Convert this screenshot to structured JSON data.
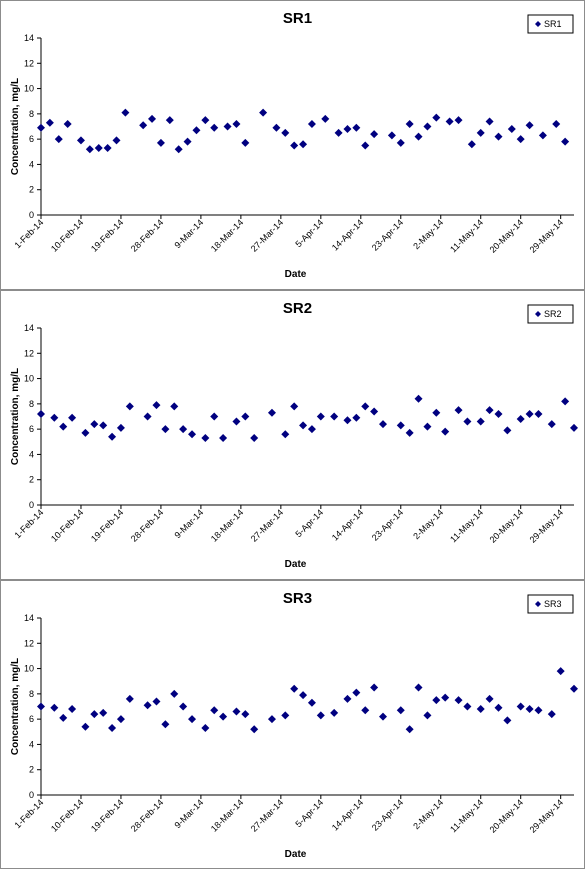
{
  "chart_data": [
    {
      "type": "scatter",
      "title": "SR1",
      "xlabel": "Date",
      "ylabel": "Concentration, mg/L",
      "ylim": [
        0,
        14
      ],
      "yticks": [
        "0",
        "2",
        "4",
        "6",
        "8",
        "10",
        "12",
        "14"
      ],
      "xlim": [
        "2014-02-01",
        "2014-06-01"
      ],
      "xticks": [
        "1-Feb-14",
        "10-Feb-14",
        "19-Feb-14",
        "28-Feb-14",
        "9-Mar-14",
        "18-Mar-14",
        "27-Mar-14",
        "5-Apr-14",
        "14-Apr-14",
        "23-Apr-14",
        "2-May-14",
        "11-May-14",
        "20-May-14",
        "29-May-14"
      ],
      "grid": false,
      "legend_position": "top-right",
      "marker_color": "#000080",
      "series": [
        {
          "name": "SR1",
          "points": [
            [
              "2014-02-01",
              6.9
            ],
            [
              "2014-02-03",
              7.3
            ],
            [
              "2014-02-05",
              6.0
            ],
            [
              "2014-02-07",
              7.2
            ],
            [
              "2014-02-10",
              5.9
            ],
            [
              "2014-02-12",
              5.2
            ],
            [
              "2014-02-14",
              5.3
            ],
            [
              "2014-02-16",
              5.3
            ],
            [
              "2014-02-18",
              5.9
            ],
            [
              "2014-02-20",
              8.1
            ],
            [
              "2014-02-24",
              7.1
            ],
            [
              "2014-02-26",
              7.6
            ],
            [
              "2014-02-28",
              5.7
            ],
            [
              "2014-03-02",
              7.5
            ],
            [
              "2014-03-04",
              5.2
            ],
            [
              "2014-03-06",
              5.8
            ],
            [
              "2014-03-08",
              6.7
            ],
            [
              "2014-03-10",
              7.5
            ],
            [
              "2014-03-12",
              6.9
            ],
            [
              "2014-03-15",
              7.0
            ],
            [
              "2014-03-17",
              7.2
            ],
            [
              "2014-03-19",
              5.7
            ],
            [
              "2014-03-23",
              8.1
            ],
            [
              "2014-03-26",
              6.9
            ],
            [
              "2014-03-28",
              6.5
            ],
            [
              "2014-03-30",
              5.5
            ],
            [
              "2014-04-01",
              5.6
            ],
            [
              "2014-04-03",
              7.2
            ],
            [
              "2014-04-06",
              7.6
            ],
            [
              "2014-04-09",
              6.5
            ],
            [
              "2014-04-11",
              6.8
            ],
            [
              "2014-04-13",
              6.9
            ],
            [
              "2014-04-15",
              5.5
            ],
            [
              "2014-04-17",
              6.4
            ],
            [
              "2014-04-21",
              6.3
            ],
            [
              "2014-04-23",
              5.7
            ],
            [
              "2014-04-25",
              7.2
            ],
            [
              "2014-04-27",
              6.2
            ],
            [
              "2014-04-29",
              7.0
            ],
            [
              "2014-05-01",
              7.7
            ],
            [
              "2014-05-04",
              7.4
            ],
            [
              "2014-05-06",
              7.5
            ],
            [
              "2014-05-09",
              5.6
            ],
            [
              "2014-05-11",
              6.5
            ],
            [
              "2014-05-13",
              7.4
            ],
            [
              "2014-05-15",
              6.2
            ],
            [
              "2014-05-18",
              6.8
            ],
            [
              "2014-05-20",
              6.0
            ],
            [
              "2014-05-22",
              7.1
            ],
            [
              "2014-05-25",
              6.3
            ],
            [
              "2014-05-28",
              7.2
            ],
            [
              "2014-05-30",
              5.8
            ]
          ]
        }
      ]
    },
    {
      "type": "scatter",
      "title": "SR2",
      "xlabel": "Date",
      "ylabel": "Concentration, mg/L",
      "ylim": [
        0,
        14
      ],
      "yticks": [
        "0",
        "2",
        "4",
        "6",
        "8",
        "10",
        "12",
        "14"
      ],
      "xlim": [
        "2014-02-01",
        "2014-06-01"
      ],
      "xticks": [
        "1-Feb-14",
        "10-Feb-14",
        "19-Feb-14",
        "28-Feb-14",
        "9-Mar-14",
        "18-Mar-14",
        "27-Mar-14",
        "5-Apr-14",
        "14-Apr-14",
        "23-Apr-14",
        "2-May-14",
        "11-May-14",
        "20-May-14",
        "29-May-14"
      ],
      "grid": false,
      "legend_position": "top-right",
      "marker_color": "#000080",
      "series": [
        {
          "name": "SR2",
          "points": [
            [
              "2014-02-01",
              7.2
            ],
            [
              "2014-02-04",
              6.9
            ],
            [
              "2014-02-06",
              6.2
            ],
            [
              "2014-02-08",
              6.9
            ],
            [
              "2014-02-11",
              5.7
            ],
            [
              "2014-02-13",
              6.4
            ],
            [
              "2014-02-15",
              6.3
            ],
            [
              "2014-02-17",
              5.4
            ],
            [
              "2014-02-19",
              6.1
            ],
            [
              "2014-02-21",
              7.8
            ],
            [
              "2014-02-25",
              7.0
            ],
            [
              "2014-02-27",
              7.9
            ],
            [
              "2014-03-01",
              6.0
            ],
            [
              "2014-03-03",
              7.8
            ],
            [
              "2014-03-05",
              6.0
            ],
            [
              "2014-03-07",
              5.6
            ],
            [
              "2014-03-10",
              5.3
            ],
            [
              "2014-03-12",
              7.0
            ],
            [
              "2014-03-14",
              5.3
            ],
            [
              "2014-03-17",
              6.6
            ],
            [
              "2014-03-19",
              7.0
            ],
            [
              "2014-03-21",
              5.3
            ],
            [
              "2014-03-25",
              7.3
            ],
            [
              "2014-03-28",
              5.6
            ],
            [
              "2014-03-30",
              7.8
            ],
            [
              "2014-04-01",
              6.3
            ],
            [
              "2014-04-03",
              6.0
            ],
            [
              "2014-04-05",
              7.0
            ],
            [
              "2014-04-08",
              7.0
            ],
            [
              "2014-04-11",
              6.7
            ],
            [
              "2014-04-13",
              6.9
            ],
            [
              "2014-04-15",
              7.8
            ],
            [
              "2014-04-17",
              7.4
            ],
            [
              "2014-04-19",
              6.4
            ],
            [
              "2014-04-23",
              6.3
            ],
            [
              "2014-04-25",
              5.7
            ],
            [
              "2014-04-27",
              8.4
            ],
            [
              "2014-04-29",
              6.2
            ],
            [
              "2014-05-01",
              7.3
            ],
            [
              "2014-05-03",
              5.8
            ],
            [
              "2014-05-06",
              7.5
            ],
            [
              "2014-05-08",
              6.6
            ],
            [
              "2014-05-11",
              6.6
            ],
            [
              "2014-05-13",
              7.5
            ],
            [
              "2014-05-15",
              7.2
            ],
            [
              "2014-05-17",
              5.9
            ],
            [
              "2014-05-20",
              6.8
            ],
            [
              "2014-05-22",
              7.2
            ],
            [
              "2014-05-24",
              7.2
            ],
            [
              "2014-05-27",
              6.4
            ],
            [
              "2014-05-30",
              8.2
            ],
            [
              "2014-06-01",
              6.1
            ]
          ]
        }
      ]
    },
    {
      "type": "scatter",
      "title": "SR3",
      "xlabel": "Date",
      "ylabel": "Concentration, mg/L",
      "ylim": [
        0,
        14
      ],
      "yticks": [
        "0",
        "2",
        "4",
        "6",
        "8",
        "10",
        "12",
        "14"
      ],
      "xlim": [
        "2014-02-01",
        "2014-06-01"
      ],
      "xticks": [
        "1-Feb-14",
        "10-Feb-14",
        "19-Feb-14",
        "28-Feb-14",
        "9-Mar-14",
        "18-Mar-14",
        "27-Mar-14",
        "5-Apr-14",
        "14-Apr-14",
        "23-Apr-14",
        "2-May-14",
        "11-May-14",
        "20-May-14",
        "29-May-14"
      ],
      "grid": false,
      "legend_position": "top-right",
      "marker_color": "#000080",
      "series": [
        {
          "name": "SR3",
          "points": [
            [
              "2014-02-01",
              7.0
            ],
            [
              "2014-02-04",
              6.9
            ],
            [
              "2014-02-06",
              6.1
            ],
            [
              "2014-02-08",
              6.8
            ],
            [
              "2014-02-11",
              5.4
            ],
            [
              "2014-02-13",
              6.4
            ],
            [
              "2014-02-15",
              6.5
            ],
            [
              "2014-02-17",
              5.3
            ],
            [
              "2014-02-19",
              6.0
            ],
            [
              "2014-02-21",
              7.6
            ],
            [
              "2014-02-25",
              7.1
            ],
            [
              "2014-02-27",
              7.4
            ],
            [
              "2014-03-01",
              5.6
            ],
            [
              "2014-03-03",
              8.0
            ],
            [
              "2014-03-05",
              7.0
            ],
            [
              "2014-03-07",
              6.0
            ],
            [
              "2014-03-10",
              5.3
            ],
            [
              "2014-03-12",
              6.7
            ],
            [
              "2014-03-14",
              6.2
            ],
            [
              "2014-03-17",
              6.6
            ],
            [
              "2014-03-19",
              6.4
            ],
            [
              "2014-03-21",
              5.2
            ],
            [
              "2014-03-25",
              6.0
            ],
            [
              "2014-03-28",
              6.3
            ],
            [
              "2014-03-30",
              8.4
            ],
            [
              "2014-04-01",
              7.9
            ],
            [
              "2014-04-03",
              7.3
            ],
            [
              "2014-04-05",
              6.3
            ],
            [
              "2014-04-08",
              6.5
            ],
            [
              "2014-04-11",
              7.6
            ],
            [
              "2014-04-13",
              8.1
            ],
            [
              "2014-04-15",
              6.7
            ],
            [
              "2014-04-17",
              8.5
            ],
            [
              "2014-04-19",
              6.2
            ],
            [
              "2014-04-23",
              6.7
            ],
            [
              "2014-04-25",
              5.2
            ],
            [
              "2014-04-27",
              8.5
            ],
            [
              "2014-04-29",
              6.3
            ],
            [
              "2014-05-01",
              7.5
            ],
            [
              "2014-05-03",
              7.7
            ],
            [
              "2014-05-06",
              7.5
            ],
            [
              "2014-05-08",
              7.0
            ],
            [
              "2014-05-11",
              6.8
            ],
            [
              "2014-05-13",
              7.6
            ],
            [
              "2014-05-15",
              6.9
            ],
            [
              "2014-05-17",
              5.9
            ],
            [
              "2014-05-20",
              7.0
            ],
            [
              "2014-05-22",
              6.8
            ],
            [
              "2014-05-24",
              6.7
            ],
            [
              "2014-05-27",
              6.4
            ],
            [
              "2014-05-29",
              9.8
            ],
            [
              "2014-06-01",
              8.4
            ]
          ]
        }
      ]
    }
  ]
}
